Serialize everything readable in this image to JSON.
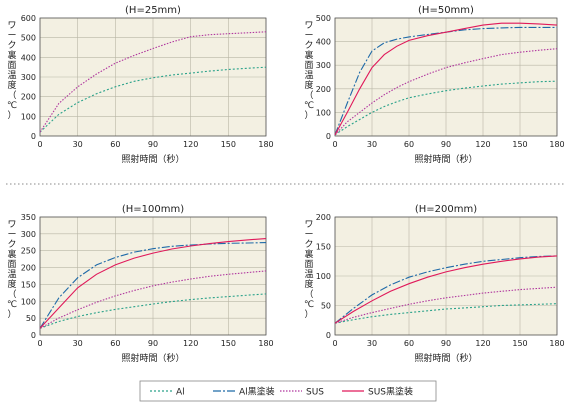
{
  "chart_data": [
    {
      "type": "line",
      "title": "(H=25mm)",
      "xlabel": "照射時間（秒）",
      "ylabel": "ワーク裏面温度（℃）",
      "xlim": [
        0,
        180
      ],
      "ylim": [
        0,
        600
      ],
      "xticks": [
        "0",
        "30",
        "60",
        "90",
        "120",
        "150",
        "180"
      ],
      "yticks": [
        "0",
        "100",
        "200",
        "300",
        "400",
        "500",
        "600"
      ],
      "grid": true,
      "x": [
        0,
        15,
        30,
        45,
        60,
        75,
        90,
        105,
        120,
        135,
        150,
        165,
        180
      ],
      "series": [
        {
          "name": "Al",
          "color": "#2aa28a",
          "dash": "2,2",
          "values": [
            20,
            110,
            170,
            215,
            250,
            278,
            296,
            310,
            320,
            330,
            338,
            344,
            350
          ]
        },
        {
          "name": "SUS",
          "color": "#b0369e",
          "dash": "1.5,1.5",
          "values": [
            20,
            165,
            250,
            315,
            370,
            410,
            445,
            478,
            505,
            515,
            520,
            525,
            530
          ]
        }
      ]
    },
    {
      "type": "line",
      "title": "(H=50mm)",
      "xlabel": "照射時間（秒）",
      "ylabel": "ワーク裏面温度（℃）",
      "xlim": [
        0,
        180
      ],
      "ylim": [
        0,
        500
      ],
      "xticks": [
        "0",
        "30",
        "60",
        "90",
        "120",
        "150",
        "180"
      ],
      "yticks": [
        "0",
        "100",
        "200",
        "300",
        "400",
        "500"
      ],
      "grid": true,
      "x": [
        0,
        10,
        20,
        30,
        40,
        50,
        60,
        75,
        90,
        105,
        120,
        135,
        150,
        165,
        180
      ],
      "series": [
        {
          "name": "Al",
          "color": "#2aa28a",
          "dash": "2,2",
          "values": [
            5,
            40,
            70,
            100,
            125,
            145,
            162,
            178,
            192,
            203,
            212,
            220,
            225,
            230,
            232
          ]
        },
        {
          "name": "Al黒塗装",
          "color": "#1f6aa8",
          "dash": "8,2,2,2",
          "values": [
            5,
            140,
            270,
            360,
            395,
            410,
            420,
            430,
            440,
            450,
            455,
            458,
            460,
            460,
            460
          ]
        },
        {
          "name": "SUS",
          "color": "#b0369e",
          "dash": "1.5,1.5",
          "values": [
            5,
            60,
            100,
            140,
            175,
            205,
            230,
            262,
            290,
            310,
            328,
            345,
            355,
            363,
            370
          ]
        },
        {
          "name": "SUS黒塗装",
          "color": "#e0195a",
          "dash": "",
          "values": [
            5,
            100,
            200,
            290,
            345,
            380,
            405,
            425,
            440,
            455,
            470,
            478,
            478,
            475,
            470
          ]
        }
      ]
    },
    {
      "type": "line",
      "title": "(H=100mm)",
      "xlabel": "照射時間（秒）",
      "ylabel": "ワーク裏面温度（℃）",
      "xlim": [
        0,
        180
      ],
      "ylim": [
        0,
        350
      ],
      "xticks": [
        "0",
        "30",
        "60",
        "90",
        "120",
        "150",
        "180"
      ],
      "yticks": [
        "0",
        "50",
        "100",
        "150",
        "200",
        "250",
        "300",
        "350"
      ],
      "grid": true,
      "x": [
        0,
        15,
        30,
        45,
        60,
        75,
        90,
        105,
        120,
        135,
        150,
        165,
        180
      ],
      "series": [
        {
          "name": "Al",
          "color": "#2aa28a",
          "dash": "2,2",
          "values": [
            20,
            40,
            55,
            66,
            76,
            84,
            92,
            99,
            105,
            110,
            114,
            118,
            122
          ]
        },
        {
          "name": "Al黒塗装",
          "color": "#1f6aa8",
          "dash": "8,2,2,2",
          "values": [
            20,
            110,
            170,
            208,
            230,
            246,
            256,
            263,
            267,
            270,
            272,
            273,
            274
          ]
        },
        {
          "name": "SUS",
          "color": "#b0369e",
          "dash": "1.5,1.5",
          "values": [
            20,
            50,
            75,
            97,
            116,
            132,
            146,
            157,
            166,
            174,
            180,
            185,
            190
          ]
        },
        {
          "name": "SUS黒塗装",
          "color": "#e0195a",
          "dash": "",
          "values": [
            20,
            80,
            140,
            180,
            208,
            228,
            243,
            255,
            264,
            271,
            277,
            282,
            286
          ]
        }
      ]
    },
    {
      "type": "line",
      "title": "(H=200mm)",
      "xlabel": "照射時間（秒）",
      "ylabel": "ワーク裏面温度（℃）",
      "xlim": [
        0,
        180
      ],
      "ylim": [
        0,
        200
      ],
      "xticks": [
        "0",
        "30",
        "60",
        "90",
        "120",
        "150",
        "180"
      ],
      "yticks": [
        "0",
        "50",
        "100",
        "150",
        "200"
      ],
      "grid": true,
      "x": [
        0,
        15,
        30,
        45,
        60,
        75,
        90,
        105,
        120,
        135,
        150,
        165,
        180
      ],
      "series": [
        {
          "name": "Al",
          "color": "#2aa28a",
          "dash": "2,2",
          "values": [
            20,
            26,
            31,
            35,
            38,
            41,
            44,
            46,
            48,
            50,
            51,
            52,
            53
          ]
        },
        {
          "name": "Al黒塗装",
          "color": "#1f6aa8",
          "dash": "8,2,2,2",
          "values": [
            20,
            45,
            68,
            85,
            98,
            107,
            114,
            120,
            125,
            128,
            131,
            133,
            134
          ]
        },
        {
          "name": "SUS",
          "color": "#b0369e",
          "dash": "1.5,1.5",
          "values": [
            20,
            30,
            38,
            45,
            52,
            58,
            63,
            67,
            71,
            74,
            77,
            79,
            81
          ]
        },
        {
          "name": "SUS黒塗装",
          "color": "#e0195a",
          "dash": "",
          "values": [
            20,
            40,
            58,
            74,
            87,
            98,
            107,
            114,
            120,
            125,
            129,
            132,
            134
          ]
        }
      ]
    }
  ],
  "legend": {
    "placement": "bottom-center",
    "items": [
      {
        "name": "Al",
        "color": "#2aa28a",
        "dash": "2,2"
      },
      {
        "name": "Al黒塗装",
        "color": "#1f6aa8",
        "dash": "8,2,2,2"
      },
      {
        "name": "SUS",
        "color": "#b0369e",
        "dash": "1.5,1.5"
      },
      {
        "name": "SUS黒塗装",
        "color": "#e0195a",
        "dash": ""
      }
    ]
  },
  "style": {
    "plot_background": "#f3f0e2",
    "grid_color": "#b9b6a6",
    "separator_color": "#888888"
  }
}
